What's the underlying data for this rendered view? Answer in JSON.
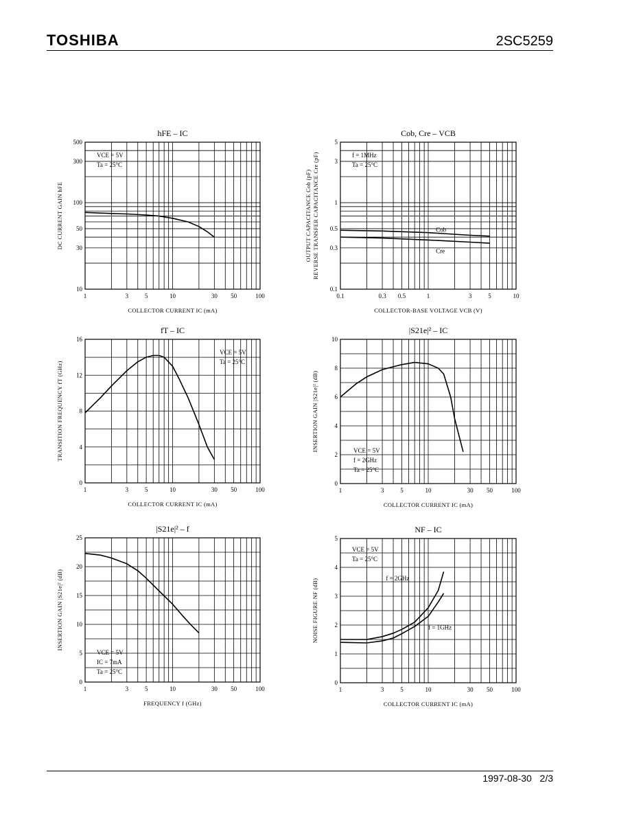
{
  "header": {
    "brand": "TOSHIBA",
    "part_number": "2SC5259"
  },
  "footer": {
    "date": "1997-08-30",
    "page": "2/3"
  },
  "chart_data": [
    {
      "id": "hfe",
      "type": "line",
      "title": "hFE – IC",
      "xlabel": "COLLECTOR CURRENT   IC   (mA)",
      "ylabel": "DC CURRENT GAIN   hFE",
      "xscale": "log",
      "yscale": "log",
      "xlim": [
        1,
        100
      ],
      "ylim": [
        10,
        500
      ],
      "xticks": [
        1,
        3,
        5,
        10,
        30,
        50,
        100
      ],
      "yticks": [
        10,
        30,
        50,
        100,
        300,
        500
      ],
      "conditions": [
        "VCE = 5V",
        "Ta = 25°C"
      ],
      "series": [
        {
          "x": [
            1,
            2,
            3,
            5,
            7,
            10,
            15,
            20,
            25,
            30
          ],
          "y": [
            77,
            75,
            74,
            72,
            70,
            66,
            60,
            53,
            46,
            40
          ]
        }
      ]
    },
    {
      "id": "cob",
      "type": "line",
      "title": "Cob, Cre – VCB",
      "xlabel": "COLLECTOR-BASE VOLTAGE   VCB   (V)",
      "ylabel": "OUTPUT CAPACITANCE  Cob (pF)",
      "ylabel2": "REVERSE TRANSFER CAPACITANCE  Cre  (pF)",
      "xscale": "log",
      "yscale": "log",
      "xlim": [
        0.1,
        10
      ],
      "ylim": [
        0.1,
        5
      ],
      "xticks": [
        0.1,
        0.3,
        0.5,
        1,
        3,
        5,
        10
      ],
      "yticks": [
        0.1,
        0.3,
        0.5,
        1,
        3,
        5
      ],
      "conditions": [
        "f = 1MHz",
        "Ta = 25°C"
      ],
      "series": [
        {
          "name": "Cob",
          "x": [
            0.1,
            0.3,
            1,
            3,
            5
          ],
          "y": [
            0.48,
            0.47,
            0.45,
            0.42,
            0.41
          ]
        },
        {
          "name": "Cre",
          "x": [
            0.1,
            0.3,
            1,
            3,
            5
          ],
          "y": [
            0.4,
            0.39,
            0.37,
            0.35,
            0.34
          ]
        }
      ]
    },
    {
      "id": "ft",
      "type": "line",
      "title": "fT – IC",
      "xlabel": "COLLECTOR CURRENT   IC   (mA)",
      "ylabel": "TRANSITION FREQUENCY   fT   (GHz)",
      "xscale": "log",
      "yscale": "linear",
      "xlim": [
        1,
        100
      ],
      "ylim": [
        0,
        16
      ],
      "xticks": [
        1,
        3,
        5,
        10,
        30,
        50,
        100
      ],
      "yticks": [
        0,
        4,
        8,
        12,
        16
      ],
      "conditions": [
        "VCE = 5V",
        "Ta = 25°C"
      ],
      "series": [
        {
          "x": [
            1,
            1.5,
            2,
            3,
            4,
            5,
            6,
            7,
            8,
            10,
            12,
            15,
            20,
            25,
            30
          ],
          "y": [
            7.8,
            9.5,
            10.8,
            12.5,
            13.5,
            14.0,
            14.2,
            14.2,
            14.0,
            13.0,
            11.5,
            9.5,
            6.5,
            4.0,
            2.6
          ]
        }
      ]
    },
    {
      "id": "s21_ic",
      "type": "line",
      "title": "|S21e|² – IC",
      "xlabel": "COLLECTOR CURRENT   IC   (mA)",
      "ylabel": "INSERTION GAIN   |S21e|²   (dB)",
      "xscale": "log",
      "yscale": "linear",
      "xlim": [
        1,
        100
      ],
      "ylim": [
        0,
        10
      ],
      "xticks": [
        1,
        3,
        5,
        10,
        30,
        50,
        100
      ],
      "yticks": [
        0,
        2,
        4,
        6,
        8,
        10
      ],
      "conditions": [
        "VCE = 5V",
        "f = 2GHz",
        "Ta = 25°C"
      ],
      "series": [
        {
          "x": [
            1,
            1.5,
            2,
            3,
            4,
            5,
            7,
            10,
            13,
            15,
            18,
            20,
            25
          ],
          "y": [
            6.0,
            6.9,
            7.4,
            7.9,
            8.1,
            8.25,
            8.4,
            8.3,
            8.0,
            7.6,
            6.0,
            4.5,
            2.2
          ]
        }
      ]
    },
    {
      "id": "s21_f",
      "type": "line",
      "title": "|S21e|² – f",
      "xlabel": "FREQUENCY   f   (GHz)",
      "ylabel": "INSERTION GAIN   |S21e|²   (dB)",
      "xscale": "log",
      "yscale": "linear",
      "xlim": [
        1,
        100
      ],
      "ylim": [
        0,
        25
      ],
      "xticks": [
        1,
        3,
        5,
        10,
        30,
        50,
        100
      ],
      "yticks": [
        0,
        5,
        10,
        15,
        20,
        25
      ],
      "conditions": [
        "VCE = 5V",
        "IC = 7mA",
        "Ta = 25°C"
      ],
      "series": [
        {
          "x": [
            1,
            1.5,
            2,
            3,
            4,
            5,
            7,
            10,
            13,
            16,
            20
          ],
          "y": [
            22.3,
            22.0,
            21.5,
            20.5,
            19.3,
            18.0,
            15.8,
            13.5,
            11.5,
            10.0,
            8.5
          ]
        }
      ]
    },
    {
      "id": "nf",
      "type": "line",
      "title": "NF – IC",
      "xlabel": "COLLECTOR CURRENT   IC   (mA)",
      "ylabel": "NOISE FIGURE   NF   (dB)",
      "xscale": "log",
      "yscale": "linear",
      "xlim": [
        1,
        100
      ],
      "ylim": [
        0,
        5
      ],
      "xticks": [
        1,
        3,
        5,
        10,
        30,
        50,
        100
      ],
      "yticks": [
        0,
        1,
        2,
        3,
        4,
        5
      ],
      "conditions": [
        "VCE = 5V",
        "Ta = 25°C"
      ],
      "series": [
        {
          "name": "f = 2GHz",
          "x": [
            1,
            2,
            3,
            4,
            5,
            7,
            10,
            13,
            15
          ],
          "y": [
            1.5,
            1.5,
            1.6,
            1.72,
            1.85,
            2.1,
            2.6,
            3.2,
            3.85
          ]
        },
        {
          "name": "f = 1GHz",
          "x": [
            1,
            2,
            3,
            4,
            5,
            7,
            10,
            13,
            15
          ],
          "y": [
            1.4,
            1.38,
            1.45,
            1.55,
            1.7,
            1.95,
            2.3,
            2.8,
            3.1
          ]
        }
      ]
    }
  ]
}
